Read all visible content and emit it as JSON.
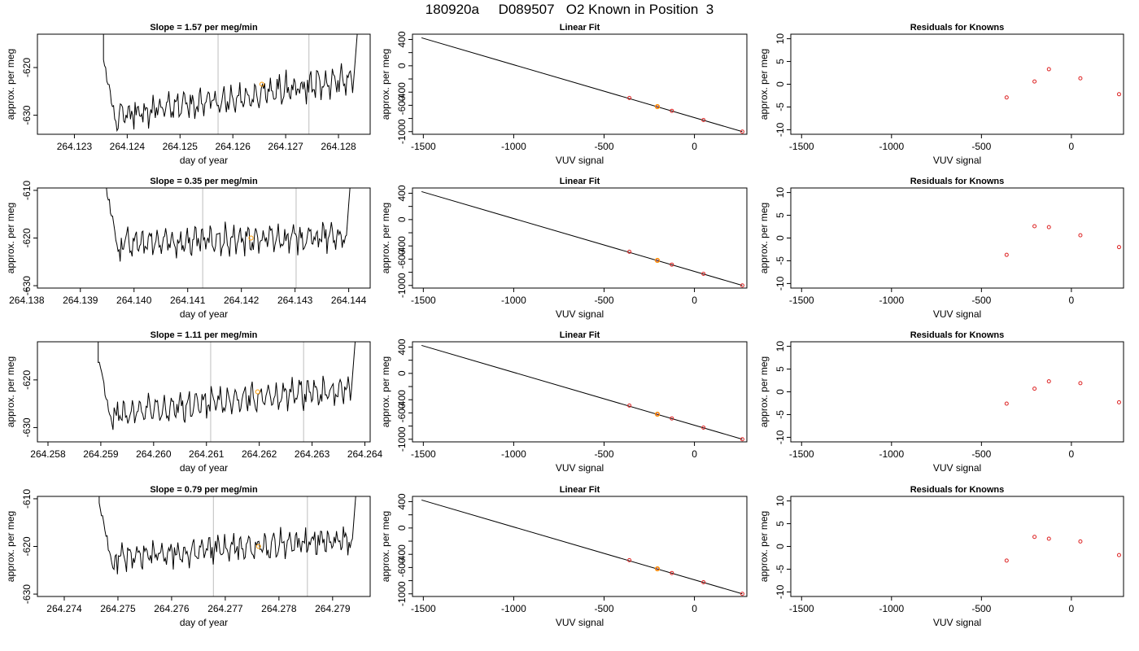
{
  "page_title": "180920a     D089507   O2 Known in Position  3",
  "colors": {
    "trace": "#000000",
    "gridline": "#c8c8c8",
    "known_point": "#dd2222",
    "highlight_point": "#ff9900"
  },
  "chart_data": [
    {
      "type": "line",
      "row": 0,
      "panel": "timeseries",
      "title": "Slope =  1.57  per meg/min",
      "xlabel": "day of year",
      "ylabel": "approx. per meg",
      "xlim": [
        264.1223,
        264.1286
      ],
      "ylim": [
        -634,
        -613
      ],
      "xticks": [
        264.123,
        264.124,
        264.125,
        264.126,
        264.127,
        264.128
      ],
      "xtick_labels": [
        "264.123",
        "264.124",
        "264.125",
        "264.126",
        "264.127",
        "264.128"
      ],
      "yticks": [
        -630,
        -620
      ],
      "ytick_labels": [
        "-630",
        "-620"
      ],
      "vlines": [
        264.12572,
        264.12744
      ],
      "trace": {
        "start": 264.12355,
        "end": 264.12846,
        "base": -630.5,
        "slope": 1.57,
        "noise": 1.8
      },
      "highlight": {
        "x": 264.12655,
        "y": -623.5
      }
    },
    {
      "type": "scatter",
      "row": 0,
      "panel": "fit",
      "title": "Linear Fit",
      "xlabel": "VUV signal",
      "ylabel": "approx. per meg",
      "xlim": [
        -1560,
        290
      ],
      "ylim": [
        -1040,
        480
      ],
      "xticks": [
        -1500,
        -1000,
        -500,
        0
      ],
      "xtick_labels": [
        "-1500",
        "-1000",
        "-500",
        "0"
      ],
      "yticks": [
        -1000,
        -800,
        -600,
        -400,
        -200,
        0,
        200,
        400
      ],
      "ytick_labels": [
        "-1000",
        "",
        "-600",
        "-400",
        "",
        "0",
        "",
        "400"
      ],
      "line": {
        "x": [
          -1510,
          265
        ],
        "y": [
          425,
          -1000
        ]
      },
      "points": {
        "x": [
          -360,
          -205,
          -125,
          50,
          265
        ],
        "y": [
          -488,
          -620,
          -684,
          -824,
          -1000
        ]
      },
      "highlight": {
        "x": -205,
        "y": -620
      }
    },
    {
      "type": "scatter",
      "row": 0,
      "panel": "residuals",
      "title": "Residuals for Knowns",
      "xlabel": "VUV signal",
      "ylabel": "approx. per meg",
      "xlim": [
        -1560,
        290
      ],
      "ylim": [
        -11,
        11
      ],
      "xticks": [
        -1500,
        -1000,
        -500,
        0
      ],
      "xtick_labels": [
        "-1500",
        "-1000",
        "-500",
        "0"
      ],
      "yticks": [
        -10,
        -5,
        0,
        5,
        10
      ],
      "ytick_labels": [
        "-10",
        "-5",
        "0",
        "5",
        "10"
      ],
      "points": {
        "x": [
          -360,
          -205,
          -125,
          50,
          265
        ],
        "y": [
          -2.9,
          0.6,
          3.3,
          1.3,
          -2.2
        ]
      }
    },
    {
      "type": "line",
      "row": 1,
      "panel": "timeseries",
      "title": "Slope =  0.35  per meg/min",
      "xlabel": "day of year",
      "ylabel": "approx. per meg",
      "xlim": [
        264.1382,
        264.1444
      ],
      "ylim": [
        -630.5,
        -609.5
      ],
      "xticks": [
        264.138,
        264.139,
        264.14,
        264.141,
        264.142,
        264.143,
        264.144
      ],
      "xtick_labels": [
        "264.138",
        "264.139",
        "264.140",
        "264.141",
        "264.142",
        "264.143",
        "264.144"
      ],
      "yticks": [
        -630,
        -620,
        -610
      ],
      "ytick_labels": [
        "-630",
        "-620",
        "-610"
      ],
      "vlines": [
        264.14128,
        264.14302
      ],
      "trace": {
        "start": 264.13948,
        "end": 264.14412,
        "base": -621.3,
        "slope": 0.35,
        "noise": 1.7
      },
      "highlight": {
        "x": 264.14218,
        "y": -620
      }
    },
    {
      "type": "scatter",
      "row": 1,
      "panel": "fit",
      "title": "Linear Fit",
      "xlabel": "VUV signal",
      "ylabel": "approx. per meg",
      "xlim": [
        -1560,
        290
      ],
      "ylim": [
        -1040,
        480
      ],
      "xticks": [
        -1500,
        -1000,
        -500,
        0
      ],
      "xtick_labels": [
        "-1500",
        "-1000",
        "-500",
        "0"
      ],
      "yticks": [
        -1000,
        -800,
        -600,
        -400,
        -200,
        0,
        200,
        400
      ],
      "ytick_labels": [
        "-1000",
        "",
        "-600",
        "-400",
        "",
        "0",
        "",
        "400"
      ],
      "line": {
        "x": [
          -1510,
          265
        ],
        "y": [
          425,
          -1000
        ]
      },
      "points": {
        "x": [
          -360,
          -205,
          -125,
          50,
          265
        ],
        "y": [
          -488,
          -620,
          -684,
          -824,
          -1000
        ]
      },
      "highlight": {
        "x": -205,
        "y": -620
      }
    },
    {
      "type": "scatter",
      "row": 1,
      "panel": "residuals",
      "title": "Residuals for Knowns",
      "xlabel": "VUV signal",
      "ylabel": "approx. per meg",
      "xlim": [
        -1560,
        290
      ],
      "ylim": [
        -11,
        11
      ],
      "xticks": [
        -1500,
        -1000,
        -500,
        0
      ],
      "xtick_labels": [
        "-1500",
        "-1000",
        "-500",
        "0"
      ],
      "yticks": [
        -10,
        -5,
        0,
        5,
        10
      ],
      "ytick_labels": [
        "-10",
        "-5",
        "0",
        "5",
        "10"
      ],
      "points": {
        "x": [
          -360,
          -205,
          -125,
          50,
          265
        ],
        "y": [
          -3.7,
          2.6,
          2.4,
          0.6,
          -2.0
        ]
      }
    },
    {
      "type": "line",
      "row": 2,
      "panel": "timeseries",
      "title": "Slope =  1.11  per meg/min",
      "xlabel": "day of year",
      "ylabel": "approx. per meg",
      "xlim": [
        264.2578,
        264.2641
      ],
      "ylim": [
        -633,
        -612
      ],
      "xticks": [
        264.258,
        264.259,
        264.26,
        264.261,
        264.262,
        264.263,
        264.264
      ],
      "xtick_labels": [
        "264.258",
        "264.259",
        "264.260",
        "264.261",
        "264.262",
        "264.263",
        "264.264"
      ],
      "yticks": [
        -630,
        -620
      ],
      "ytick_labels": [
        "-630",
        "-620"
      ],
      "vlines": [
        264.26108,
        264.26284
      ],
      "trace": {
        "start": 264.25895,
        "end": 264.26392,
        "base": -627.5,
        "slope": 1.11,
        "noise": 1.8
      },
      "highlight": {
        "x": 264.26197,
        "y": -622.5
      }
    },
    {
      "type": "scatter",
      "row": 2,
      "panel": "fit",
      "title": "Linear Fit",
      "xlabel": "VUV signal",
      "ylabel": "approx. per meg",
      "xlim": [
        -1560,
        290
      ],
      "ylim": [
        -1040,
        480
      ],
      "xticks": [
        -1500,
        -1000,
        -500,
        0
      ],
      "xtick_labels": [
        "-1500",
        "-1000",
        "-500",
        "0"
      ],
      "yticks": [
        -1000,
        -800,
        -600,
        -400,
        -200,
        0,
        200,
        400
      ],
      "ytick_labels": [
        "-1000",
        "",
        "-600",
        "-400",
        "",
        "0",
        "",
        "400"
      ],
      "line": {
        "x": [
          -1510,
          265
        ],
        "y": [
          425,
          -1000
        ]
      },
      "points": {
        "x": [
          -360,
          -205,
          -125,
          50,
          265
        ],
        "y": [
          -488,
          -620,
          -684,
          -824,
          -1000
        ]
      },
      "highlight": {
        "x": -205,
        "y": -620
      }
    },
    {
      "type": "scatter",
      "row": 2,
      "panel": "residuals",
      "title": "Residuals for Knowns",
      "xlabel": "VUV signal",
      "ylabel": "approx. per meg",
      "xlim": [
        -1560,
        290
      ],
      "ylim": [
        -11,
        11
      ],
      "xticks": [
        -1500,
        -1000,
        -500,
        0
      ],
      "xtick_labels": [
        "-1500",
        "-1000",
        "-500",
        "0"
      ],
      "yticks": [
        -10,
        -5,
        0,
        5,
        10
      ],
      "ytick_labels": [
        "-10",
        "-5",
        "0",
        "5",
        "10"
      ],
      "points": {
        "x": [
          -360,
          -205,
          -125,
          50,
          265
        ],
        "y": [
          -2.6,
          0.7,
          2.3,
          1.9,
          -2.3
        ]
      }
    },
    {
      "type": "line",
      "row": 3,
      "panel": "timeseries",
      "title": "Slope =  0.79  per meg/min",
      "xlabel": "day of year",
      "ylabel": "approx. per meg",
      "xlim": [
        264.2735,
        264.2797
      ],
      "ylim": [
        -630.5,
        -609.5
      ],
      "xticks": [
        264.274,
        264.275,
        264.276,
        264.277,
        264.278,
        264.279
      ],
      "xtick_labels": [
        "264.274",
        "264.275",
        "264.276",
        "264.277",
        "264.278",
        "264.279"
      ],
      "yticks": [
        -630,
        -620,
        -610
      ],
      "ytick_labels": [
        "-630",
        "-620",
        "-610"
      ],
      "vlines": [
        264.27678,
        264.27853
      ],
      "trace": {
        "start": 264.27465,
        "end": 264.27954,
        "base": -622.5,
        "slope": 0.79,
        "noise": 1.7
      },
      "highlight": {
        "x": 264.27762,
        "y": -620
      }
    },
    {
      "type": "scatter",
      "row": 3,
      "panel": "fit",
      "title": "Linear Fit",
      "xlabel": "VUV signal",
      "ylabel": "approx. per meg",
      "xlim": [
        -1560,
        290
      ],
      "ylim": [
        -1040,
        480
      ],
      "xticks": [
        -1500,
        -1000,
        -500,
        0
      ],
      "xtick_labels": [
        "-1500",
        "-1000",
        "-500",
        "0"
      ],
      "yticks": [
        -1000,
        -800,
        -600,
        -400,
        -200,
        0,
        200,
        400
      ],
      "ytick_labels": [
        "-1000",
        "",
        "-600",
        "-400",
        "",
        "0",
        "",
        "400"
      ],
      "line": {
        "x": [
          -1510,
          265
        ],
        "y": [
          425,
          -1000
        ]
      },
      "points": {
        "x": [
          -360,
          -205,
          -125,
          50,
          265
        ],
        "y": [
          -488,
          -620,
          -684,
          -824,
          -1000
        ]
      },
      "highlight": {
        "x": -205,
        "y": -620
      }
    },
    {
      "type": "scatter",
      "row": 3,
      "panel": "residuals",
      "title": "Residuals for Knowns",
      "xlabel": "VUV signal",
      "ylabel": "approx. per meg",
      "xlim": [
        -1560,
        290
      ],
      "ylim": [
        -11,
        11
      ],
      "xticks": [
        -1500,
        -1000,
        -500,
        0
      ],
      "xtick_labels": [
        "-1500",
        "-1000",
        "-500",
        "0"
      ],
      "yticks": [
        -10,
        -5,
        0,
        5,
        10
      ],
      "ytick_labels": [
        "-10",
        "-5",
        "0",
        "5",
        "10"
      ],
      "points": {
        "x": [
          -360,
          -205,
          -125,
          50,
          265
        ],
        "y": [
          -3.1,
          2.1,
          1.7,
          1.1,
          -1.9
        ]
      }
    }
  ]
}
